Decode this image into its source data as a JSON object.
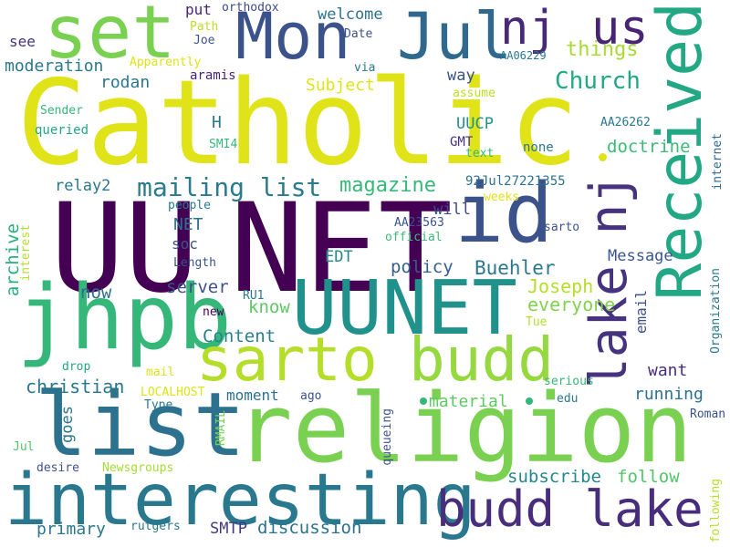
{
  "words": [
    {
      "text": "Catholic",
      "color": "#dfe318"
    },
    {
      "text": "UU",
      "color": "#440154"
    },
    {
      "text": "NET",
      "color": "#440154"
    },
    {
      "text": "religion",
      "color": "#7ad151"
    },
    {
      "text": "list",
      "color": "#2c728e"
    },
    {
      "text": "interesting",
      "color": "#2a788e"
    },
    {
      "text": "UUNET",
      "color": "#21918c"
    },
    {
      "text": "Received",
      "color": "#22a884"
    },
    {
      "text": "jhpb",
      "color": "#35b779"
    },
    {
      "text": "Mon",
      "color": "#3b528b"
    },
    {
      "text": "Jul",
      "color": "#31688e"
    },
    {
      "text": "set",
      "color": "#7ad151"
    },
    {
      "text": "id",
      "color": "#3b528b"
    },
    {
      "text": "sarto",
      "color": "#b5de2b"
    },
    {
      "text": "budd",
      "color": "#95d840"
    },
    {
      "text": "budd lake",
      "color": "#472d7b"
    },
    {
      "text": "lake nj",
      "color": "#46327e"
    },
    {
      "text": "nj",
      "color": "#482878"
    },
    {
      "text": "us",
      "color": "#482475"
    },
    {
      "text": "mailing list",
      "color": "#2a7b8e"
    },
    {
      "text": "Church",
      "color": "#22a884"
    },
    {
      "text": "things",
      "color": "#a8db34"
    },
    {
      "text": "magazine",
      "color": "#37b878"
    },
    {
      "text": "moderation",
      "color": "#2a788e"
    },
    {
      "text": "doctrine",
      "color": "#3bbb75"
    },
    {
      "text": "Buehler",
      "color": "#29788e"
    },
    {
      "text": "Joseph",
      "color": "#b5de2b"
    },
    {
      "text": "everyone",
      "color": "#81d34d"
    },
    {
      "text": "Message",
      "color": "#39568c"
    },
    {
      "text": "policy",
      "color": "#355e8d"
    },
    {
      "text": "server",
      "color": "#3b528b"
    },
    {
      "text": "now",
      "color": "#2f6c8e"
    },
    {
      "text": "know",
      "color": "#5ec962"
    },
    {
      "text": "Content",
      "color": "#26818e"
    },
    {
      "text": "christian",
      "color": "#2a788e"
    },
    {
      "text": "running",
      "color": "#2c728e"
    },
    {
      "text": "want",
      "color": "#472d7b"
    },
    {
      "text": "material",
      "color": "#5ec962"
    },
    {
      "text": "subscribe",
      "color": "#24878e"
    },
    {
      "text": "follow",
      "color": "#52c569"
    },
    {
      "text": "discussion",
      "color": "#2c728e"
    },
    {
      "text": "primary",
      "color": "#2a788e"
    },
    {
      "text": "SMTP",
      "color": "#443a83"
    },
    {
      "text": "archive",
      "color": "#29af7f"
    },
    {
      "text": "welcome",
      "color": "#2c728e"
    },
    {
      "text": "put",
      "color": "#482475"
    },
    {
      "text": "see",
      "color": "#46327e"
    },
    {
      "text": "Subject",
      "color": "#dfe318"
    },
    {
      "text": "rodan",
      "color": "#2a788e"
    },
    {
      "text": "way",
      "color": "#3b528b"
    },
    {
      "text": "UUCP",
      "color": "#21918c"
    },
    {
      "text": "will",
      "color": "#3e4a89"
    },
    {
      "text": "relay2",
      "color": "#2a788e"
    },
    {
      "text": "NET",
      "color": "#2c728e"
    },
    {
      "text": "EDT",
      "color": "#23898e"
    },
    {
      "text": "soc",
      "color": "#3b528b"
    },
    {
      "text": "H",
      "color": "#2a788e"
    },
    {
      "text": "goes",
      "color": "#2a788e"
    },
    {
      "text": "moment",
      "color": "#2c728e"
    },
    {
      "text": "email",
      "color": "#3b528b"
    },
    {
      "text": "orthodox",
      "color": "#3e4a89"
    },
    {
      "text": "Path",
      "color": "#bddf26"
    },
    {
      "text": "Joe",
      "color": "#3b528b"
    },
    {
      "text": "Date",
      "color": "#3b528b"
    },
    {
      "text": "Apparently",
      "color": "#dfe318"
    },
    {
      "text": "AA06229",
      "color": "#2a788e"
    },
    {
      "text": "via",
      "color": "#2a788e"
    },
    {
      "text": "aramis",
      "color": "#482475"
    },
    {
      "text": "assume",
      "color": "#bddf26"
    },
    {
      "text": "Sender",
      "color": "#35b779"
    },
    {
      "text": "queried",
      "color": "#22a884"
    },
    {
      "text": "SMI4",
      "color": "#35b779"
    },
    {
      "text": "AA26262",
      "color": "#2a788e"
    },
    {
      "text": "GMT",
      "color": "#472d7b"
    },
    {
      "text": "text",
      "color": "#35b779"
    },
    {
      "text": "none",
      "color": "#2a788e"
    },
    {
      "text": "internet",
      "color": "#31688e"
    },
    {
      "text": "92Jul27221355",
      "color": "#2c728e"
    },
    {
      "text": "weeks",
      "color": "#dfe318"
    },
    {
      "text": "people",
      "color": "#2a788e"
    },
    {
      "text": "AA23563",
      "color": "#3b528b"
    },
    {
      "text": "official",
      "color": "#3bbb75"
    },
    {
      "text": "sarto",
      "color": "#3b528b"
    },
    {
      "text": "interest",
      "color": "#b5de2b"
    },
    {
      "text": "Length",
      "color": "#3b528b"
    },
    {
      "text": "RU1",
      "color": "#2a788e"
    },
    {
      "text": "new",
      "color": "#440154"
    },
    {
      "text": "Organization",
      "color": "#2a788e"
    },
    {
      "text": "Tue",
      "color": "#b5de2b"
    },
    {
      "text": "drop",
      "color": "#22a884"
    },
    {
      "text": "mail",
      "color": "#dfe318"
    },
    {
      "text": "LOCALHOST",
      "color": "#dfe318"
    },
    {
      "text": "Type",
      "color": "#2a788e"
    },
    {
      "text": "RMAIL",
      "color": "#7ad151"
    },
    {
      "text": "ago",
      "color": "#3b528b"
    },
    {
      "text": "queueing",
      "color": "#3b528b"
    },
    {
      "text": "serious",
      "color": "#35b779"
    },
    {
      "text": "edu",
      "color": "#2a788e"
    },
    {
      "text": "Roman",
      "color": "#3b528b"
    },
    {
      "text": "Jul",
      "color": "#52c569"
    },
    {
      "text": "desire",
      "color": "#3b528b"
    },
    {
      "text": "Newsgroups",
      "color": "#a8db34"
    },
    {
      "text": "rutgers",
      "color": "#2a788e"
    },
    {
      "text": "following",
      "color": "#b5de2b"
    }
  ]
}
